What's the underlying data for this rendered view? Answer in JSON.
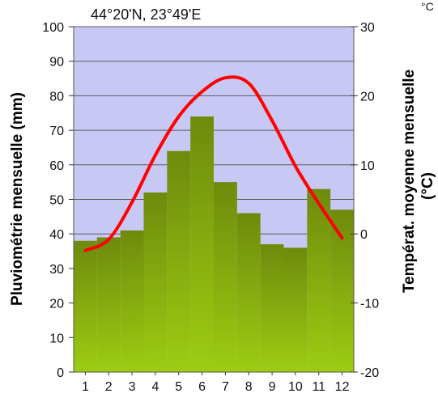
{
  "chart_data": {
    "type": "bar",
    "title": "44°20'N, 23°49'E",
    "corner_unit": "°C",
    "categories": [
      "1",
      "2",
      "3",
      "4",
      "5",
      "6",
      "7",
      "8",
      "9",
      "10",
      "11",
      "12"
    ],
    "precipitation": {
      "axis_label": "Pluviométrie mensuelle (mm)",
      "values": [
        38,
        39,
        41,
        52,
        64,
        74,
        55,
        46,
        37,
        36,
        53,
        47
      ],
      "ylim": [
        0,
        100
      ],
      "ticks": [
        0,
        10,
        20,
        30,
        40,
        50,
        60,
        70,
        80,
        90,
        100
      ]
    },
    "temperature": {
      "axis_label_line1": "Températ. moyenne mensuelle",
      "axis_label_line2": "(°C)",
      "values": [
        -2.4,
        -0.8,
        4.6,
        11.4,
        17.0,
        20.6,
        22.6,
        21.8,
        16.4,
        9.8,
        4.4,
        -0.6
      ],
      "ylim": [
        -20,
        30
      ],
      "ticks": [
        -20,
        -10,
        0,
        10,
        20,
        30
      ]
    },
    "grid": true,
    "colors": {
      "plot_background": "#c8c8f5",
      "bar_top": "#6f8a0c",
      "bar_bottom": "#9ccd12",
      "line": "#ff0000",
      "grid": "#5a5a5a"
    }
  }
}
